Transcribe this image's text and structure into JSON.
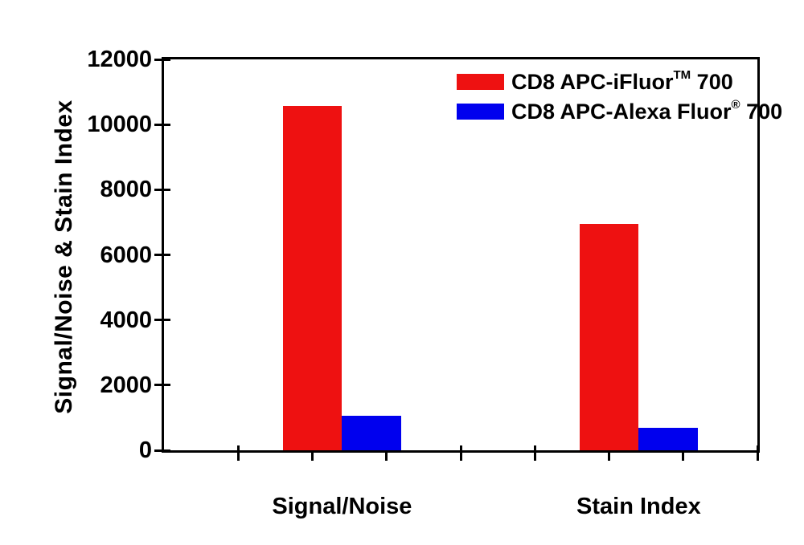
{
  "chart_data": {
    "type": "bar",
    "categories": [
      "Signal/Noise",
      "Stain Index"
    ],
    "series": [
      {
        "name": "CD8 APC-iFluor™ 700",
        "color": "#ee1111",
        "values": [
          10560,
          6940
        ]
      },
      {
        "name": "CD8 APC-Alexa Fluor® 700",
        "color": "#0000ee",
        "values": [
          1050,
          690
        ]
      }
    ],
    "title": "",
    "xlabel": "",
    "ylabel": "Signal/Noise & Stain Index",
    "ylim": [
      0,
      12000
    ],
    "yticks": [
      0,
      2000,
      4000,
      6000,
      8000,
      10000,
      12000
    ],
    "ytick_labels": [
      "0",
      "2000",
      "4000",
      "6000",
      "8000",
      "10000",
      "12000"
    ],
    "grid": false,
    "legend_position": "top-right-inside",
    "frame": "full-box",
    "axis_color": "#000000",
    "background_color": "#ffffff"
  },
  "legend": {
    "entries": [
      {
        "prefix": "CD8 APC-iFluor",
        "sup": "TM",
        "suffix": " 700",
        "color": "#ee1111",
        "icon": "red-swatch"
      },
      {
        "prefix": "CD8 APC-Alexa Fluor",
        "sup": "®",
        "suffix": " 700",
        "color": "#0000ee",
        "icon": "blue-swatch"
      }
    ]
  }
}
